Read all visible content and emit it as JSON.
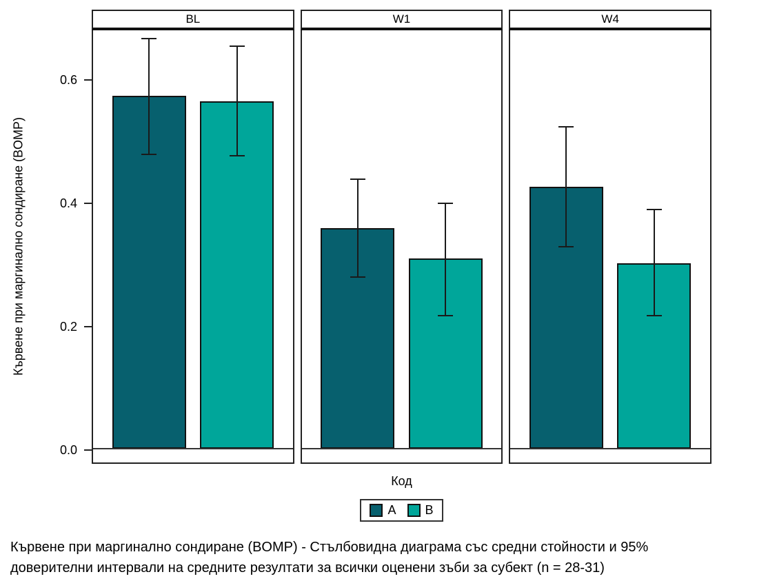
{
  "chart_data": {
    "type": "bar",
    "facets": [
      "BL",
      "W1",
      "W4"
    ],
    "categories_note": "grouped bars by treatment code within each visit facet",
    "series": [
      {
        "name": "A",
        "color": "#07606E",
        "values": [
          0.575,
          0.36,
          0.427
        ],
        "ci_low": [
          0.48,
          0.28,
          0.33
        ],
        "ci_high": [
          0.668,
          0.44,
          0.525
        ]
      },
      {
        "name": "B",
        "color": "#00A69A",
        "values": [
          0.566,
          0.31,
          0.303
        ],
        "ci_low": [
          0.478,
          0.217,
          0.217
        ],
        "ci_high": [
          0.656,
          0.4,
          0.39
        ]
      }
    ],
    "xlabel": "Код",
    "ylabel": "Кървене при маргинално сондиране (BOMP)",
    "yticks": [
      0.0,
      0.2,
      0.4,
      0.6
    ],
    "ylim": [
      -0.022,
      0.682
    ],
    "grid": "off",
    "legend_position": "bottom",
    "error_bars": "95% confidence intervals"
  },
  "legend": {
    "items": [
      {
        "label": "A",
        "color": "#07606E"
      },
      {
        "label": "B",
        "color": "#00A69A"
      }
    ]
  },
  "caption": {
    "line1": "Кървене при маргинално сондиране (BOMP) - Стълбовидна диаграма със средни стойности и 95%",
    "line2": "доверителни интервали на средните резултати за всички оценени зъби за субект (n = 28-31)"
  }
}
